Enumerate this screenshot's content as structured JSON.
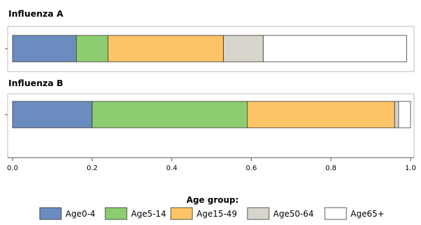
{
  "chart_data": {
    "type": "bar",
    "orientation": "horizontal",
    "stacked": true,
    "panels": [
      {
        "title": "Influenza A",
        "segments": [
          0.16,
          0.08,
          0.29,
          0.1,
          0.36
        ]
      },
      {
        "title": "Influenza B",
        "segments": [
          0.2,
          0.39,
          0.37,
          0.01,
          0.03
        ]
      }
    ],
    "series": [
      {
        "name": "Age0-4",
        "color": "#6b8cbf"
      },
      {
        "name": "Age5-14",
        "color": "#8dcc6f"
      },
      {
        "name": "Age15-49",
        "color": "#fcc466"
      },
      {
        "name": "Age50-64",
        "color": "#d8d6cc"
      },
      {
        "name": "Age65+",
        "color": "#ffffff"
      }
    ],
    "xlim": [
      0,
      1.0
    ],
    "xticks": [
      "0.0",
      "0.2",
      "0.4",
      "0.6",
      "0.8",
      "1.0"
    ],
    "xtick_values": [
      0,
      0.2,
      0.4,
      0.6,
      0.8,
      1.0
    ],
    "legend_title": "Age group:",
    "legend_position": "bottom",
    "grid": false
  }
}
